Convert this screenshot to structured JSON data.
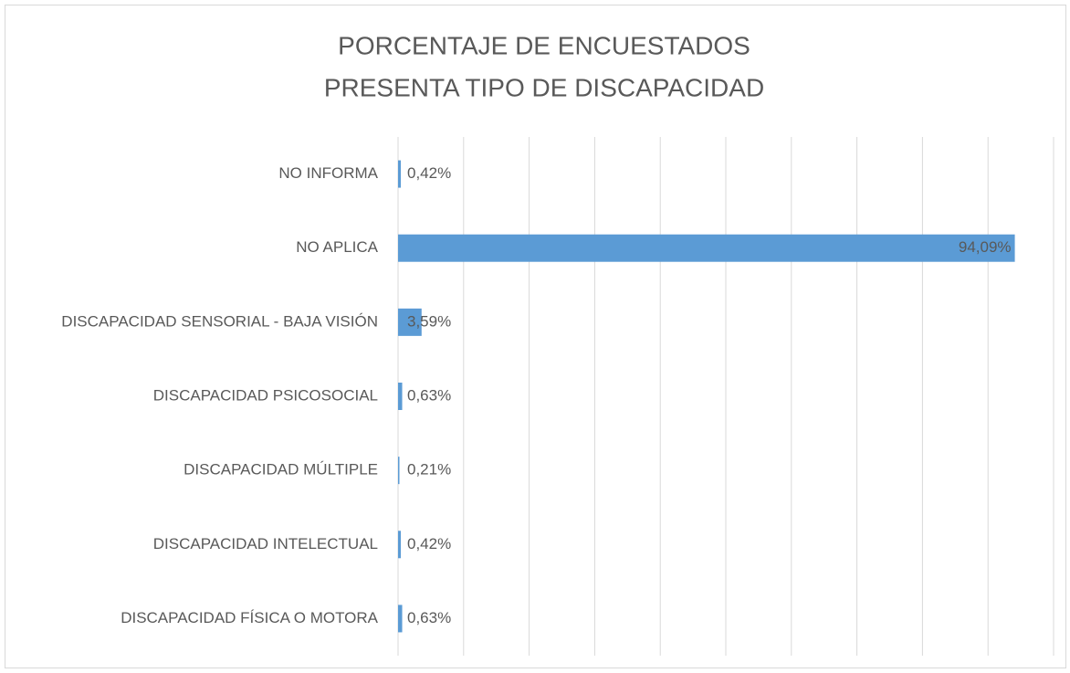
{
  "chart_data": {
    "type": "hbar",
    "title": [
      "PORCENTAJE DE ENCUESTADOS",
      "PRESENTA TIPO DE DISCAPACIDAD"
    ],
    "categories": [
      "NO INFORMA",
      "NO APLICA",
      "DISCAPACIDAD SENSORIAL - BAJA VISIÓN",
      "DISCAPACIDAD PSICOSOCIAL",
      "DISCAPACIDAD MÚLTIPLE",
      "DISCAPACIDAD INTELECTUAL",
      "DISCAPACIDAD FÍSICA O MOTORA"
    ],
    "values": [
      0.42,
      94.09,
      3.59,
      0.63,
      0.21,
      0.42,
      0.63
    ],
    "value_labels": [
      "0,42%",
      "94,09%",
      "3,59%",
      "0,63%",
      "0,21%",
      "0,42%",
      "0,63%"
    ],
    "color": "#5b9bd5",
    "xlim": [
      0,
      100
    ],
    "xticks": [
      0,
      10,
      20,
      30,
      40,
      50,
      60,
      70,
      80,
      90,
      100
    ],
    "grid": true
  }
}
